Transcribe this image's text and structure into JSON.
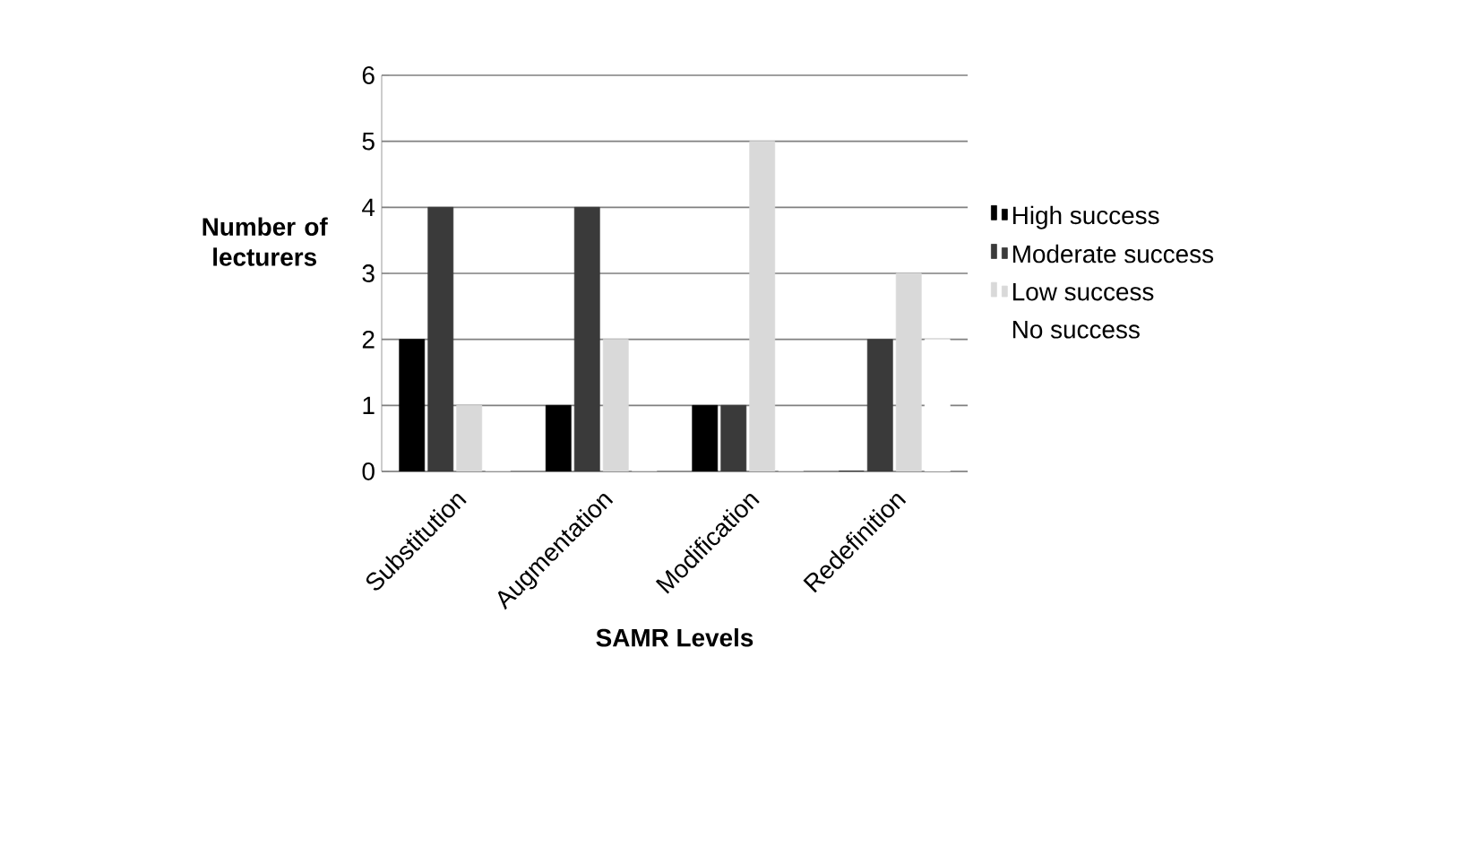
{
  "chart_data": {
    "type": "bar",
    "xlabel": "SAMR Levels",
    "ylabel": "Number of lecturers",
    "categories": [
      "Substitution",
      "Augmentation",
      "Modification",
      "Redefinition"
    ],
    "series": [
      {
        "name": "High success",
        "color": "#000000",
        "values": [
          2,
          1,
          1,
          0
        ]
      },
      {
        "name": "Moderate success",
        "color": "#3a3a3a",
        "values": [
          4,
          4,
          1,
          2
        ]
      },
      {
        "name": "Low success",
        "color": "#d9d9d9",
        "values": [
          1,
          2,
          5,
          3
        ]
      },
      {
        "name": "No success",
        "color": "#ffffff",
        "values": [
          0,
          0,
          0,
          2
        ]
      }
    ],
    "ylim": [
      0,
      6
    ],
    "yticks": [
      0,
      1,
      2,
      3,
      4,
      5,
      6
    ],
    "grid": "y",
    "legend": "right"
  }
}
